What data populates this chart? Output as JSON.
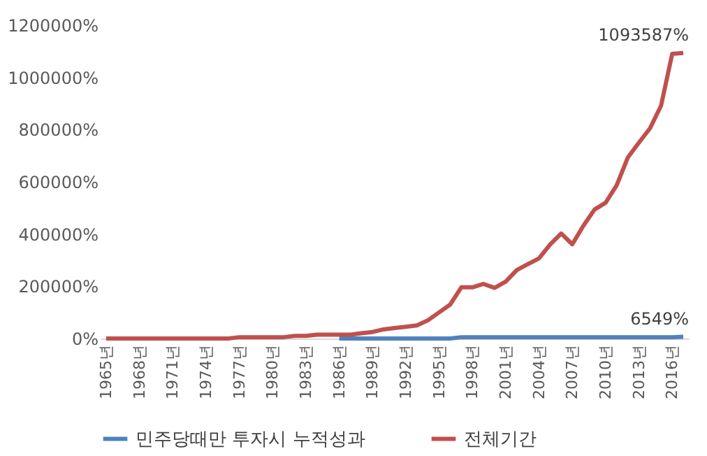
{
  "chart_data": {
    "type": "line",
    "categories": [
      "1965년",
      null,
      null,
      "1968년",
      null,
      null,
      "1971년",
      null,
      null,
      "1974년",
      null,
      null,
      "1977년",
      null,
      null,
      "1980년",
      null,
      null,
      "1983년",
      null,
      null,
      "1986년",
      null,
      null,
      "1989년",
      null,
      null,
      "1992년",
      null,
      null,
      "1995년",
      null,
      null,
      "1998년",
      null,
      null,
      "2001년",
      null,
      null,
      "2004년",
      null,
      null,
      "2007년",
      null,
      null,
      "2010년",
      null,
      null,
      "2013년",
      null,
      null,
      "2016년",
      null
    ],
    "series": [
      {
        "name": "민주당때만 투자시 누적성과",
        "color": "#4f81bd",
        "values": [
          null,
          null,
          null,
          null,
          null,
          null,
          null,
          null,
          null,
          null,
          null,
          null,
          null,
          null,
          null,
          null,
          null,
          null,
          null,
          null,
          null,
          0,
          0,
          0,
          0,
          0,
          0,
          0,
          0,
          0,
          0,
          0,
          5000,
          5000,
          5000,
          5000,
          5000,
          5000,
          5000,
          5000,
          5000,
          5000,
          5000,
          5000,
          5000,
          5000,
          5000,
          5000,
          5000,
          5000,
          5000,
          5000,
          6549
        ],
        "value_labels": [
          null,
          null,
          null,
          null,
          null,
          null,
          null,
          null,
          null,
          null,
          null,
          null,
          null,
          null,
          null,
          null,
          null,
          null,
          null,
          null,
          null,
          null,
          null,
          null,
          null,
          null,
          null,
          null,
          null,
          null,
          null,
          null,
          null,
          null,
          null,
          null,
          null,
          null,
          null,
          null,
          null,
          null,
          null,
          null,
          null,
          null,
          null,
          null,
          null,
          null,
          null,
          null,
          "6549%"
        ]
      },
      {
        "name": "전체기간",
        "color": "#c0504d",
        "values": [
          0,
          0,
          0,
          0,
          0,
          0,
          0,
          0,
          0,
          0,
          0,
          0,
          5000,
          5000,
          5000,
          5000,
          5000,
          10000,
          10000,
          15000,
          15000,
          15000,
          15000,
          20000,
          25000,
          35000,
          40000,
          45000,
          50000,
          70000,
          100000,
          130000,
          196000,
          196000,
          209000,
          194000,
          218000,
          262000,
          285000,
          307000,
          360000,
          402000,
          361000,
          432000,
          494000,
          520000,
          587000,
          693000,
          750000,
          805000,
          892000,
          1090000,
          1093587
        ],
        "value_labels": [
          null,
          null,
          null,
          null,
          null,
          null,
          null,
          null,
          null,
          null,
          null,
          null,
          null,
          null,
          null,
          null,
          null,
          null,
          null,
          null,
          null,
          null,
          null,
          null,
          null,
          null,
          null,
          null,
          null,
          null,
          null,
          null,
          null,
          null,
          null,
          null,
          null,
          null,
          null,
          null,
          null,
          null,
          null,
          null,
          null,
          null,
          null,
          null,
          null,
          null,
          null,
          null,
          "1093587%"
        ]
      }
    ],
    "ylim": [
      0,
      1200000
    ],
    "yticks": [
      {
        "value": 0,
        "label": "0%"
      },
      {
        "value": 200000,
        "label": "200000%"
      },
      {
        "value": 400000,
        "label": "400000%"
      },
      {
        "value": 600000,
        "label": "600000%"
      },
      {
        "value": 800000,
        "label": "800000%"
      },
      {
        "value": 1000000,
        "label": "1000000%"
      },
      {
        "value": 1200000,
        "label": "1200000%"
      }
    ],
    "grid": false,
    "legend": "bottom",
    "marker": "none",
    "line_style": "solid"
  }
}
